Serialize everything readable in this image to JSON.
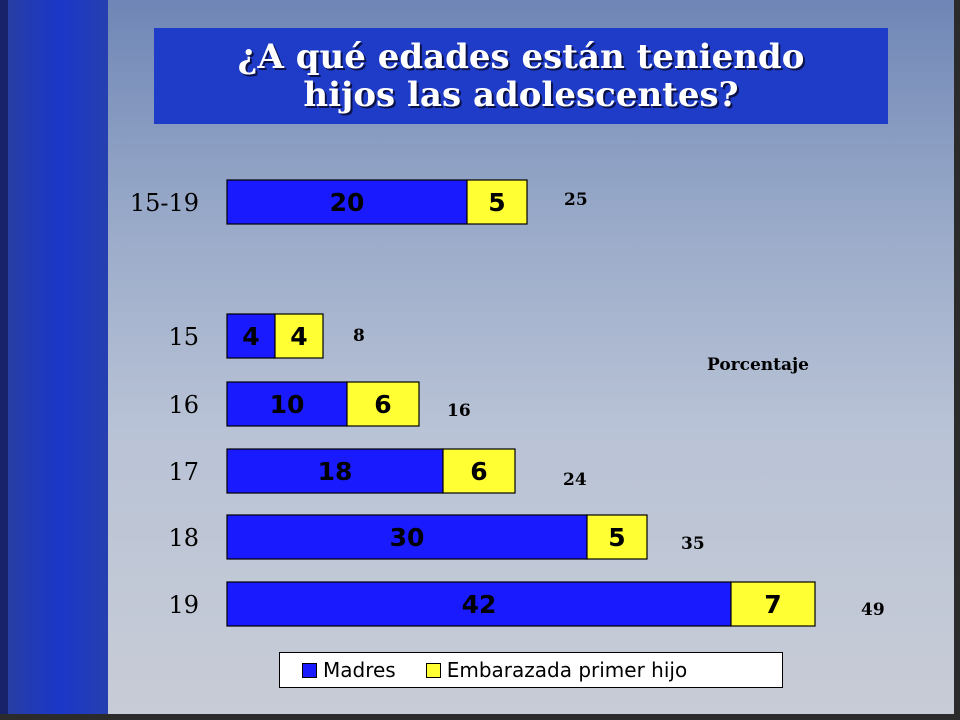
{
  "slide": {
    "title": "¿A qué edades están teniendo hijos las adolescentes?",
    "unit_label": "Porcentaje"
  },
  "colors": {
    "madres": "#1a1aff",
    "embarazada": "#ffff33",
    "title_bg": "#1f3cc9"
  },
  "chart_data": {
    "type": "bar",
    "orientation": "horizontal",
    "stacked": true,
    "categories": [
      "15-19",
      "15",
      "16",
      "17",
      "18",
      "19"
    ],
    "series": [
      {
        "name": "Madres",
        "values": [
          20,
          4,
          10,
          18,
          30,
          42
        ]
      },
      {
        "name": "Embarazada primer hijo",
        "values": [
          5,
          4,
          6,
          6,
          5,
          7
        ]
      }
    ],
    "totals": [
      25,
      8,
      16,
      24,
      35,
      49
    ],
    "legend_position": "bottom",
    "grid": false
  }
}
